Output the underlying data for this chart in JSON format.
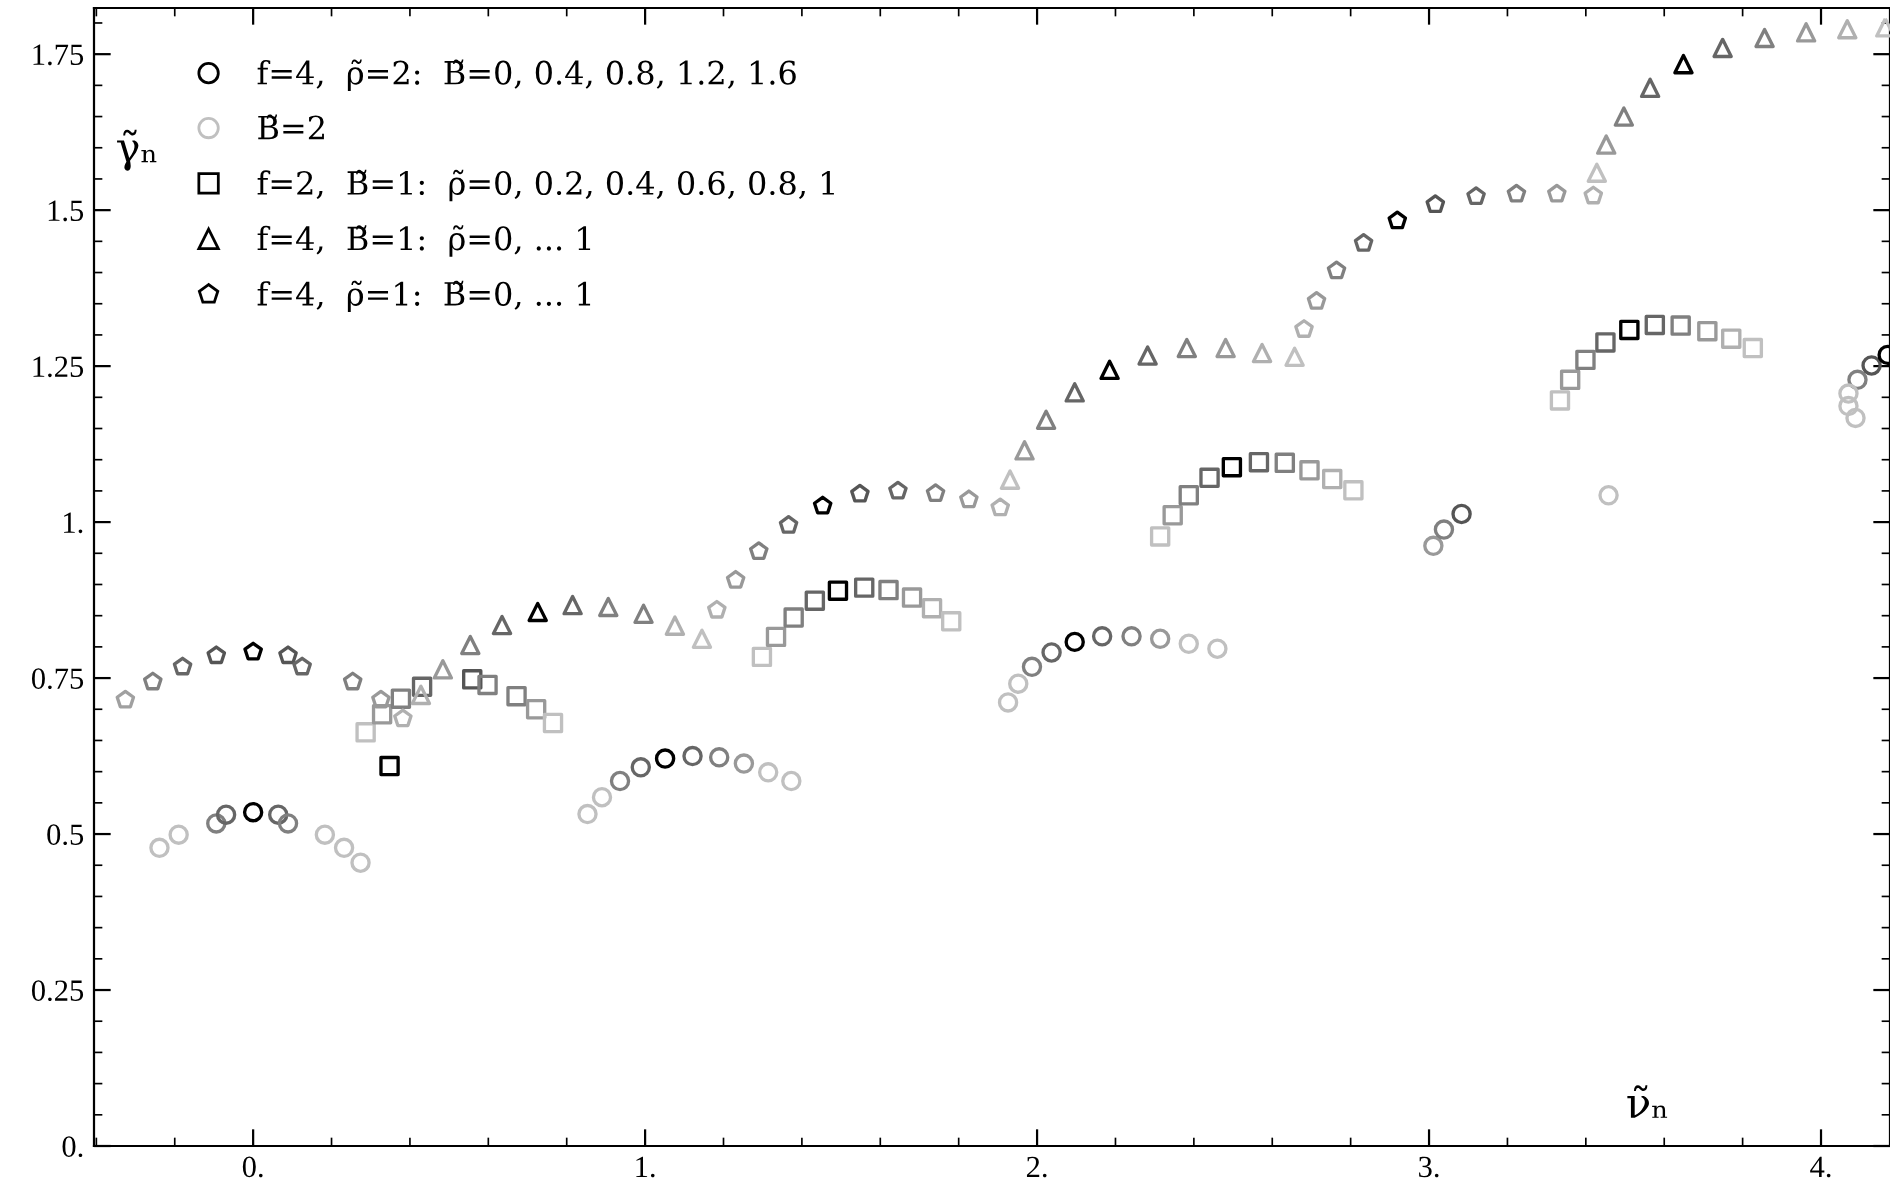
{
  "chart_data": {
    "type": "scatter",
    "xlabel": "ν̃ₙ",
    "ylabel": "γ̃ₙ",
    "xlim": [
      -0.406,
      4.176
    ],
    "ylim": [
      0,
      1.824
    ],
    "xticks": [
      {
        "value": 0,
        "label": "0."
      },
      {
        "value": 1,
        "label": "1."
      },
      {
        "value": 2,
        "label": "2."
      },
      {
        "value": 3,
        "label": "3."
      },
      {
        "value": 4,
        "label": "4."
      }
    ],
    "yticks": [
      {
        "value": 0,
        "label": "0."
      },
      0.25,
      0.5,
      0.75,
      {
        "value": 1,
        "label": "1."
      },
      1.25,
      1.5,
      1.75
    ],
    "grid": false,
    "legend": "top left",
    "series": [
      {
        "name": "f=4,  ρ̃=2:  B̃=0, 0.4, 0.8, 1.2, 1.6",
        "marker": "circle",
        "color": "#000000",
        "x": [
          -0.094,
          -0.069,
          0,
          0.064,
          0.089,
          0.936,
          0.989,
          1.051,
          1.121,
          1.189,
          1.252,
          1.987,
          2.037,
          2.096,
          2.166,
          2.241,
          2.314,
          3.011,
          3.038,
          3.083,
          4.093,
          4.129,
          4.17
        ],
        "values": [
          0.517,
          0.531,
          0.535,
          0.531,
          0.517,
          0.585,
          0.607,
          0.621,
          0.625,
          0.623,
          0.613,
          0.768,
          0.791,
          0.808,
          0.817,
          0.817,
          0.813,
          0.962,
          0.988,
          1.013,
          1.228,
          1.251,
          1.268
        ],
        "colors": [
          "#808080",
          "#666666",
          "#000000",
          "#666666",
          "#808080",
          "#808080",
          "#666666",
          "#000000",
          "#666666",
          "#808080",
          "#999999",
          "#808080",
          "#666666",
          "#000000",
          "#666666",
          "#808080",
          "#999999",
          "#999999",
          "#808080",
          "#555555",
          "#808080",
          "#555555",
          "#000000"
        ]
      },
      {
        "name": "B̃=2",
        "marker": "circle",
        "color": "#c0c0c0",
        "x": [
          -0.239,
          -0.19,
          0.183,
          0.232,
          0.274,
          0.853,
          0.89,
          1.314,
          1.373,
          1.926,
          1.952,
          2.387,
          2.46,
          3.458,
          4.07,
          4.07,
          4.088
        ],
        "values": [
          0.478,
          0.499,
          0.499,
          0.478,
          0.454,
          0.532,
          0.559,
          0.599,
          0.585,
          0.711,
          0.741,
          0.805,
          0.797,
          1.043,
          1.186,
          1.206,
          1.167
        ],
        "colors": [
          "#c0c0c0",
          "#c0c0c0",
          "#c0c0c0",
          "#c0c0c0",
          "#c0c0c0",
          "#c0c0c0",
          "#c0c0c0",
          "#c0c0c0",
          "#c0c0c0",
          "#c0c0c0",
          "#c0c0c0",
          "#c0c0c0",
          "#c0c0c0",
          "#c0c0c0",
          "#c0c0c0",
          "#c0c0c0",
          "#c0c0c0"
        ]
      },
      {
        "name": "f=2,  B̃=1:  ρ̃=0, 0.2, 0.4, 0.6, 0.8, 1",
        "marker": "square",
        "color": "#000000",
        "x": [
          0.287,
          0.329,
          0.348,
          0.377,
          0.431,
          0.559,
          0.598,
          0.672,
          0.722,
          0.765,
          1.298,
          1.334,
          1.379,
          1.433,
          1.492,
          1.559,
          1.621,
          1.681,
          1.732,
          1.781,
          2.314,
          2.346,
          2.387,
          2.44,
          2.497,
          2.566,
          2.632,
          2.695,
          2.753,
          2.807,
          3.334,
          3.36,
          3.399,
          3.45,
          3.511,
          3.576,
          3.642,
          3.71,
          3.771,
          3.826
        ],
        "values": [
          0.663,
          0.692,
          0.609,
          0.717,
          0.736,
          0.748,
          0.739,
          0.721,
          0.7,
          0.678,
          0.784,
          0.816,
          0.847,
          0.874,
          0.89,
          0.895,
          0.891,
          0.879,
          0.862,
          0.841,
          0.977,
          1.011,
          1.043,
          1.071,
          1.088,
          1.096,
          1.095,
          1.083,
          1.069,
          1.051,
          1.195,
          1.228,
          1.26,
          1.288,
          1.308,
          1.316,
          1.315,
          1.306,
          1.294,
          1.279
        ],
        "colors": [
          "#c0c0c0",
          "#999999",
          "#000000",
          "#808080",
          "#666666",
          "#555555",
          "#808080",
          "#808080",
          "#999999",
          "#c0c0c0",
          "#c0c0c0",
          "#999999",
          "#808080",
          "#666666",
          "#000000",
          "#666666",
          "#808080",
          "#999999",
          "#b0b0b0",
          "#c0c0c0",
          "#c0c0c0",
          "#999999",
          "#808080",
          "#666666",
          "#000000",
          "#666666",
          "#808080",
          "#999999",
          "#b0b0b0",
          "#c0c0c0",
          "#c0c0c0",
          "#999999",
          "#808080",
          "#666666",
          "#000000",
          "#666666",
          "#808080",
          "#999999",
          "#b0b0b0",
          "#c0c0c0"
        ]
      },
      {
        "name": "f=4,  B̃=1:  ρ̃=0, ... 1",
        "marker": "triangle",
        "color": "#000000",
        "x": [
          0.428,
          0.484,
          0.554,
          0.635,
          0.726,
          0.815,
          0.906,
          0.996,
          1.076,
          1.145,
          1.931,
          1.968,
          2.023,
          2.096,
          2.185,
          2.282,
          2.382,
          2.481,
          2.574,
          2.657,
          3.428,
          3.452,
          3.497,
          3.564,
          3.649,
          3.749,
          3.856,
          3.962,
          4.067,
          4.164
        ],
        "values": [
          0.723,
          0.764,
          0.803,
          0.835,
          0.856,
          0.867,
          0.864,
          0.853,
          0.834,
          0.813,
          1.068,
          1.115,
          1.164,
          1.208,
          1.244,
          1.267,
          1.279,
          1.279,
          1.271,
          1.265,
          1.56,
          1.605,
          1.65,
          1.696,
          1.734,
          1.76,
          1.776,
          1.785,
          1.79,
          1.793
        ],
        "colors": [
          "#b0b0b0",
          "#999999",
          "#808080",
          "#666666",
          "#000000",
          "#666666",
          "#808080",
          "#808080",
          "#b0b0b0",
          "#c0c0c0",
          "#c0c0c0",
          "#999999",
          "#808080",
          "#666666",
          "#000000",
          "#666666",
          "#808080",
          "#999999",
          "#b0b0b0",
          "#c0c0c0",
          "#c0c0c0",
          "#999999",
          "#808080",
          "#666666",
          "#000000",
          "#666666",
          "#808080",
          "#999999",
          "#b0b0b0",
          "#c0c0c0"
        ]
      },
      {
        "name": "f=4,  ρ̃=1:  B̃=0, ... 1",
        "color": "#000000",
        "x": [
          -0.326,
          -0.256,
          -0.18,
          -0.094,
          0,
          0.089,
          0.125,
          0.254,
          0.326,
          0.382,
          1.183,
          1.231,
          1.29,
          1.366,
          1.453,
          1.548,
          1.645,
          1.741,
          1.826,
          1.906,
          2.681,
          2.713,
          2.764,
          2.833,
          2.919,
          3.016,
          3.12,
          3.223,
          3.326,
          3.419
        ],
        "values": [
          0.715,
          0.744,
          0.768,
          0.786,
          0.792,
          0.786,
          0.768,
          0.744,
          0.715,
          0.685,
          0.859,
          0.907,
          0.953,
          0.995,
          1.026,
          1.045,
          1.05,
          1.046,
          1.036,
          1.023,
          1.309,
          1.354,
          1.403,
          1.447,
          1.483,
          1.509,
          1.522,
          1.526,
          1.526,
          1.523
        ],
        "colors": [
          "#a0a0a0",
          "#808080",
          "#666666",
          "#555555",
          "#000000",
          "#555555",
          "#666666",
          "#808080",
          "#999999",
          "#b0b0b0",
          "#b0b0b0",
          "#999999",
          "#808080",
          "#666666",
          "#000000",
          "#555555",
          "#666666",
          "#808080",
          "#999999",
          "#b0b0b0",
          "#b0b0b0",
          "#999999",
          "#808080",
          "#666666",
          "#000000",
          "#555555",
          "#666666",
          "#808080",
          "#999999",
          "#b0b0b0"
        ]
      }
    ]
  }
}
